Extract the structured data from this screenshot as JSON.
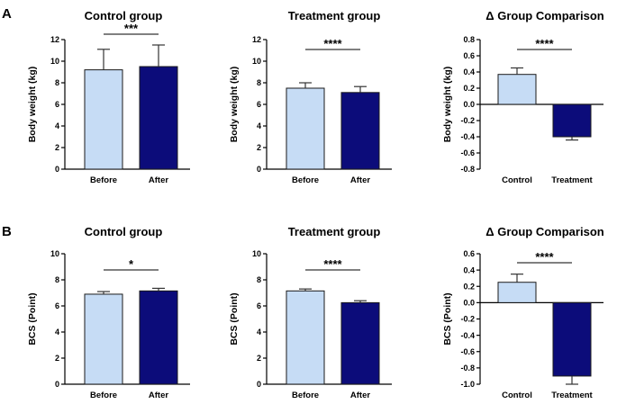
{
  "panels": [
    {
      "letter": "A"
    },
    {
      "letter": "B"
    }
  ],
  "colors": {
    "before_fill": "#c6dcf5",
    "after_fill": "#0c0c7a",
    "bar_edge": "#1a1a1a"
  },
  "chart_data": [
    {
      "type": "bar",
      "panel": "A",
      "title": "Control group",
      "ylabel": "Body weight (kg)",
      "xlabel": "",
      "categories": [
        "Before",
        "After"
      ],
      "values": [
        9.2,
        9.5
      ],
      "errors": [
        1.9,
        2.0
      ],
      "ylim": [
        0,
        12
      ],
      "yticks": [
        0,
        2,
        4,
        6,
        8,
        10,
        12
      ],
      "tick_labels": [
        "0",
        "2",
        "4",
        "6",
        "8",
        "10",
        "12"
      ],
      "significance": "***"
    },
    {
      "type": "bar",
      "panel": "A",
      "title": "Treatment group",
      "ylabel": "Body weight (kg)",
      "xlabel": "",
      "categories": [
        "Before",
        "After"
      ],
      "values": [
        7.5,
        7.1
      ],
      "errors": [
        0.5,
        0.55
      ],
      "ylim": [
        0,
        12
      ],
      "yticks": [
        0,
        2,
        4,
        6,
        8,
        10,
        12
      ],
      "tick_labels": [
        "0",
        "2",
        "4",
        "6",
        "8",
        "10",
        "12"
      ],
      "significance": "****"
    },
    {
      "type": "bar",
      "panel": "A",
      "title": "Δ Group Comparison",
      "ylabel": "Body weight (kg)",
      "xlabel": "",
      "categories": [
        "Control",
        "Treatment"
      ],
      "values": [
        0.37,
        -0.4
      ],
      "errors": [
        0.08,
        0.04
      ],
      "ylim": [
        -0.8,
        0.8
      ],
      "yticks": [
        -0.8,
        -0.6,
        -0.4,
        -0.2,
        0.0,
        0.2,
        0.4,
        0.6,
        0.8
      ],
      "tick_labels": [
        "-0.8",
        "-0.6",
        "-0.4",
        "-0.2",
        "0.0",
        "0.2",
        "0.4",
        "0.6",
        "0.8"
      ],
      "significance": "****"
    },
    {
      "type": "bar",
      "panel": "B",
      "title": "Control group",
      "ylabel": "BCS (Point)",
      "xlabel": "",
      "categories": [
        "Before",
        "After"
      ],
      "values": [
        6.9,
        7.15
      ],
      "errors": [
        0.2,
        0.2
      ],
      "ylim": [
        0,
        10
      ],
      "yticks": [
        0,
        2,
        4,
        6,
        8,
        10
      ],
      "tick_labels": [
        "0",
        "2",
        "4",
        "6",
        "8",
        "10"
      ],
      "significance": "*"
    },
    {
      "type": "bar",
      "panel": "B",
      "title": "Treatment group",
      "ylabel": "BCS (Point)",
      "xlabel": "",
      "categories": [
        "Before",
        "After"
      ],
      "values": [
        7.15,
        6.25
      ],
      "errors": [
        0.15,
        0.15
      ],
      "ylim": [
        0,
        10
      ],
      "yticks": [
        0,
        2,
        4,
        6,
        8,
        10
      ],
      "tick_labels": [
        "0",
        "2",
        "4",
        "6",
        "8",
        "10"
      ],
      "significance": "****"
    },
    {
      "type": "bar",
      "panel": "B",
      "title": "Δ Group Comparison",
      "ylabel": "BCS (Point)",
      "xlabel": "",
      "categories": [
        "Control",
        "Treatment"
      ],
      "values": [
        0.25,
        -0.9
      ],
      "errors": [
        0.1,
        0.1
      ],
      "ylim": [
        -1.0,
        0.6
      ],
      "yticks": [
        -1.0,
        -0.8,
        -0.6,
        -0.4,
        -0.2,
        0.0,
        0.2,
        0.4,
        0.6
      ],
      "tick_labels": [
        "-1.0",
        "-0.8",
        "-0.6",
        "-0.4",
        "-0.2",
        "0.0",
        "0.2",
        "0.4",
        "0.6"
      ],
      "significance": "****"
    }
  ]
}
